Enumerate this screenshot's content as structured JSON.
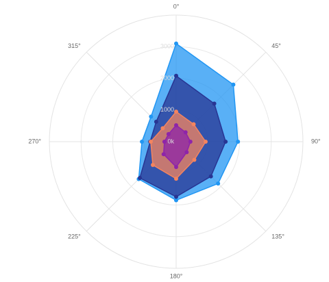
{
  "chart_data": {
    "type": "radar",
    "angles": [
      "0°",
      "45°",
      "90°",
      "135°",
      "180°",
      "225°",
      "270°",
      "315°"
    ],
    "rlim": [
      0,
      4000
    ],
    "rticks": [
      {
        "value": 0,
        "label": "0k"
      },
      1000,
      2000,
      3000
    ],
    "grid": true,
    "series": [
      {
        "color": "#2196f3",
        "values": [
          3100,
          2550,
          1950,
          1870,
          1850,
          1670,
          1080,
          1120
        ]
      },
      {
        "color": "#283593",
        "values": [
          2080,
          1700,
          1560,
          1550,
          1740,
          1620,
          820,
          890
        ]
      },
      {
        "color": "#f4845f",
        "values": [
          950,
          780,
          930,
          810,
          1170,
          1040,
          800,
          600
        ]
      },
      {
        "color": "#8e24aa",
        "values": [
          520,
          420,
          450,
          470,
          800,
          560,
          370,
          340
        ]
      }
    ]
  }
}
